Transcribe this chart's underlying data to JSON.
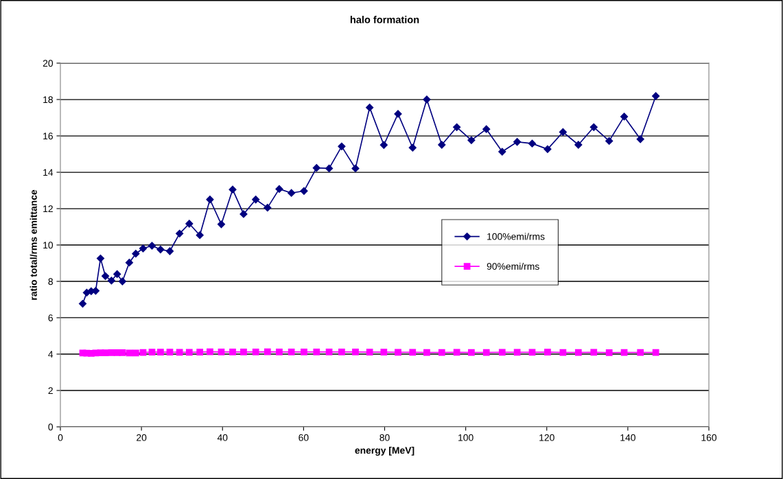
{
  "chart_data": {
    "type": "line",
    "title": "halo formation",
    "xlabel": "energy [MeV]",
    "ylabel": "ratio total/rms emittance",
    "x": [
      5.5,
      6.5,
      7.6,
      8.7,
      9.9,
      11.1,
      12.6,
      14.0,
      15.3,
      17.0,
      18.6,
      20.4,
      22.6,
      24.7,
      27.0,
      29.4,
      31.8,
      34.4,
      36.9,
      39.7,
      42.5,
      45.2,
      48.2,
      51.1,
      54.0,
      57.0,
      60.1,
      63.2,
      66.3,
      69.4,
      72.8,
      76.3,
      79.8,
      83.3,
      86.9,
      90.4,
      94.1,
      97.8,
      101.4,
      105.1,
      109.0,
      112.7,
      116.4,
      120.2,
      124.0,
      127.8,
      131.6,
      135.4,
      139.1,
      143.1,
      146.9
    ],
    "series": [
      {
        "name": "100%emi/rms",
        "color": "#000080",
        "marker": "diamond",
        "values": [
          6.77,
          7.38,
          7.46,
          7.48,
          9.26,
          8.29,
          8.04,
          8.4,
          8.0,
          9.03,
          9.52,
          9.81,
          9.96,
          9.75,
          9.66,
          10.63,
          11.17,
          10.54,
          12.5,
          11.14,
          13.05,
          11.7,
          12.5,
          12.05,
          13.08,
          12.86,
          12.97,
          14.24,
          14.21,
          15.42,
          14.21,
          17.56,
          15.5,
          17.21,
          15.35,
          18.0,
          15.51,
          16.48,
          15.76,
          16.37,
          15.13,
          15.67,
          15.58,
          15.27,
          16.21,
          15.51,
          16.48,
          15.72,
          17.06,
          15.82,
          18.19
        ]
      },
      {
        "name": "90%emi/rms",
        "color": "#ff00ff",
        "marker": "square",
        "values": [
          4.06,
          4.05,
          4.04,
          4.06,
          4.07,
          4.07,
          4.08,
          4.08,
          4.08,
          4.06,
          4.06,
          4.09,
          4.11,
          4.11,
          4.11,
          4.1,
          4.1,
          4.11,
          4.13,
          4.12,
          4.12,
          4.12,
          4.12,
          4.13,
          4.12,
          4.12,
          4.12,
          4.12,
          4.12,
          4.12,
          4.12,
          4.11,
          4.11,
          4.1,
          4.1,
          4.09,
          4.09,
          4.1,
          4.09,
          4.09,
          4.1,
          4.1,
          4.1,
          4.11,
          4.09,
          4.09,
          4.1,
          4.08,
          4.09,
          4.09,
          4.09
        ]
      }
    ],
    "xlim": [
      0,
      160
    ],
    "xticks": [
      0,
      20,
      40,
      60,
      80,
      100,
      120,
      140,
      160
    ],
    "ylim": [
      0,
      20
    ],
    "yticks": [
      0,
      2,
      4,
      6,
      8,
      10,
      12,
      14,
      16,
      18,
      20
    ],
    "grid": "y",
    "legend": "right",
    "line_style": "solid"
  }
}
